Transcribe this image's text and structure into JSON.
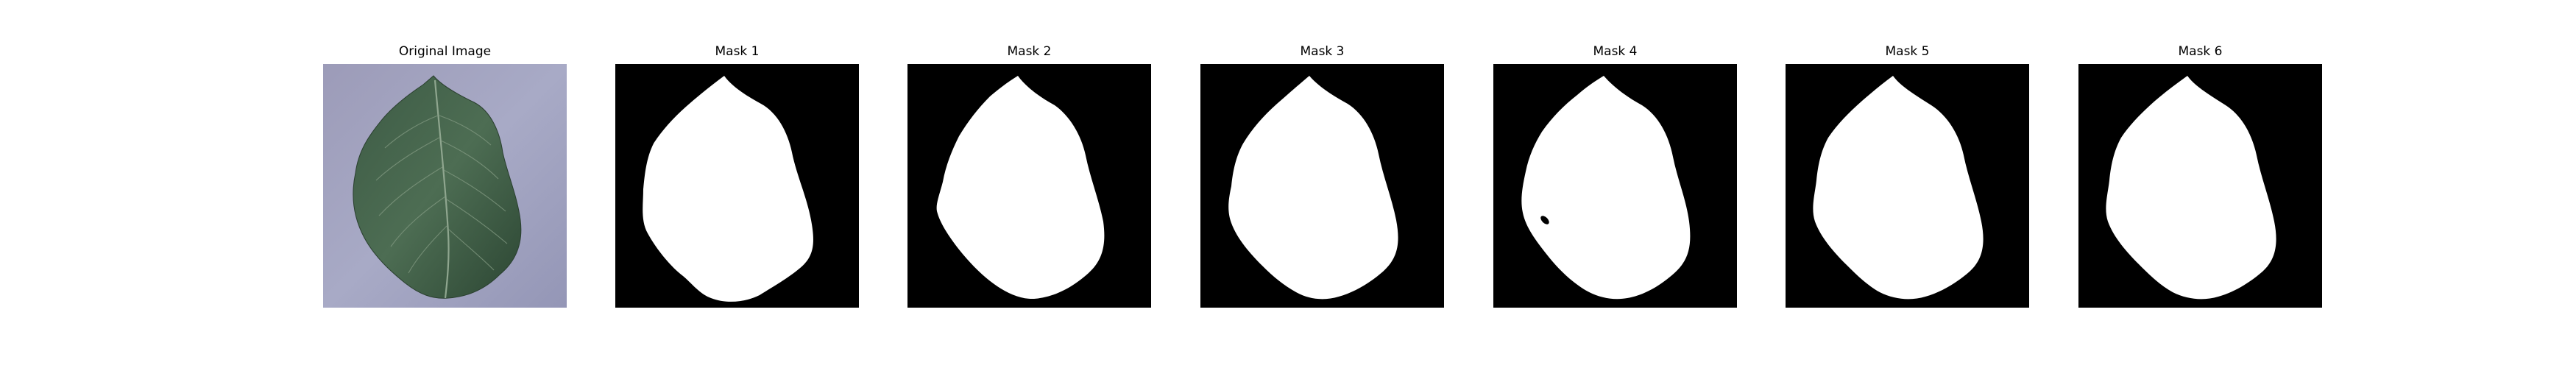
{
  "panels": [
    {
      "title": "Original Image",
      "image": "leaf-photo"
    },
    {
      "title": "Mask 1",
      "image": "segmentation-mask"
    },
    {
      "title": "Mask 2",
      "image": "segmentation-mask"
    },
    {
      "title": "Mask 3",
      "image": "segmentation-mask"
    },
    {
      "title": "Mask 4",
      "image": "segmentation-mask"
    },
    {
      "title": "Mask 5",
      "image": "segmentation-mask"
    },
    {
      "title": "Mask 6",
      "image": "segmentation-mask"
    }
  ],
  "colors": {
    "background": "#ffffff",
    "photo_background": "#a4a6c2",
    "leaf_dark": "#2f4a35",
    "leaf_light": "#5b7a5f",
    "mask_background": "#000000",
    "mask_foreground": "#ffffff"
  }
}
